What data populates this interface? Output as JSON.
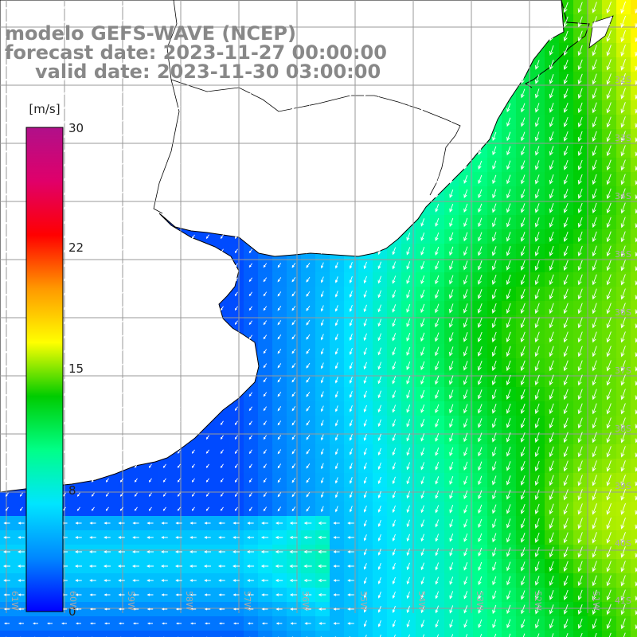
{
  "title": {
    "model": "modelo GEFS-WAVE (NCEP)",
    "forecast": "forecast date: 2023-11-27 00:00:00",
    "valid": "valid date: 2023-11-30 03:00:00"
  },
  "colorbar": {
    "units": "[m/s]",
    "ticks": [
      "30",
      "22",
      "15",
      "8",
      "0"
    ],
    "range": [
      0,
      30
    ],
    "stops": [
      "#0000ff",
      "#0088ff",
      "#00e5ff",
      "#00ff88",
      "#00cc00",
      "#ffff00",
      "#ff9900",
      "#ff0000",
      "#e0006a",
      "#b0108a"
    ]
  },
  "grid": {
    "lat_labels": [
      "32S",
      "33S",
      "34S",
      "35S",
      "36S",
      "37S",
      "38S",
      "39S",
      "40S",
      "41S"
    ],
    "lon_labels": [
      "61W",
      "60W",
      "59W",
      "58W",
      "57W",
      "56W",
      "55W",
      "54W",
      "53W",
      "52W",
      "51W"
    ]
  },
  "colors": {
    "land": "#ffffff",
    "coast": "#000000",
    "gridline": "#999999",
    "arrow": "#ffffff"
  }
}
